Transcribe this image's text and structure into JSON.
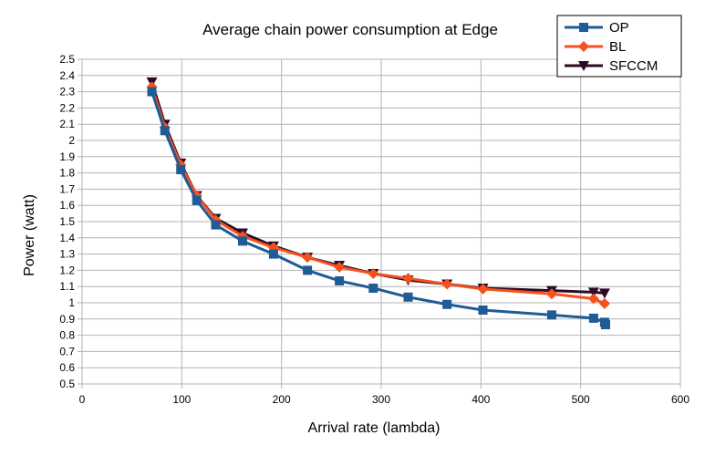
{
  "chart_data": {
    "type": "line",
    "title": "Average chain power consumption at Edge",
    "xlabel": "Arrival rate (lambda)",
    "ylabel": "Power (watt)",
    "xlim": [
      0,
      600
    ],
    "ylim": [
      0.5,
      2.5
    ],
    "xticks": [
      0,
      100,
      200,
      300,
      400,
      500,
      600
    ],
    "yticks": [
      0.5,
      0.6,
      0.7,
      0.8,
      0.9,
      1,
      1.1,
      1.2,
      1.3,
      1.4,
      1.5,
      1.6,
      1.7,
      1.8,
      1.9,
      2,
      2.1,
      2.2,
      2.3,
      2.4,
      2.5
    ],
    "grid": true,
    "legend_position": "top-right",
    "series": [
      {
        "name": "OP",
        "color": "#1f5b96",
        "marker": "square",
        "x": [
          70,
          83,
          99,
          115,
          134,
          161,
          192,
          226,
          258,
          292,
          327,
          366,
          402,
          471,
          513,
          524,
          525
        ],
        "y": [
          2.3,
          2.06,
          1.82,
          1.63,
          1.48,
          1.38,
          1.3,
          1.2,
          1.135,
          1.09,
          1.035,
          0.99,
          0.955,
          0.925,
          0.905,
          0.88,
          0.865
        ]
      },
      {
        "name": "BL",
        "color": "#f5511d",
        "marker": "diamond",
        "x": [
          70,
          83,
          99,
          115,
          134,
          161,
          192,
          226,
          258,
          292,
          327,
          366,
          402,
          471,
          513,
          524
        ],
        "y": [
          2.33,
          2.08,
          1.85,
          1.66,
          1.51,
          1.41,
          1.34,
          1.28,
          1.22,
          1.18,
          1.15,
          1.115,
          1.085,
          1.055,
          1.025,
          0.995
        ]
      },
      {
        "name": "SFCCM",
        "color": "#2e0a24",
        "marker": "triangle-down",
        "x": [
          70,
          83,
          99,
          115,
          134,
          161,
          192,
          226,
          258,
          292,
          327,
          366,
          402,
          471,
          513,
          524
        ],
        "y": [
          2.36,
          2.1,
          1.86,
          1.66,
          1.52,
          1.43,
          1.35,
          1.28,
          1.23,
          1.18,
          1.14,
          1.115,
          1.09,
          1.075,
          1.065,
          1.06
        ]
      }
    ]
  }
}
